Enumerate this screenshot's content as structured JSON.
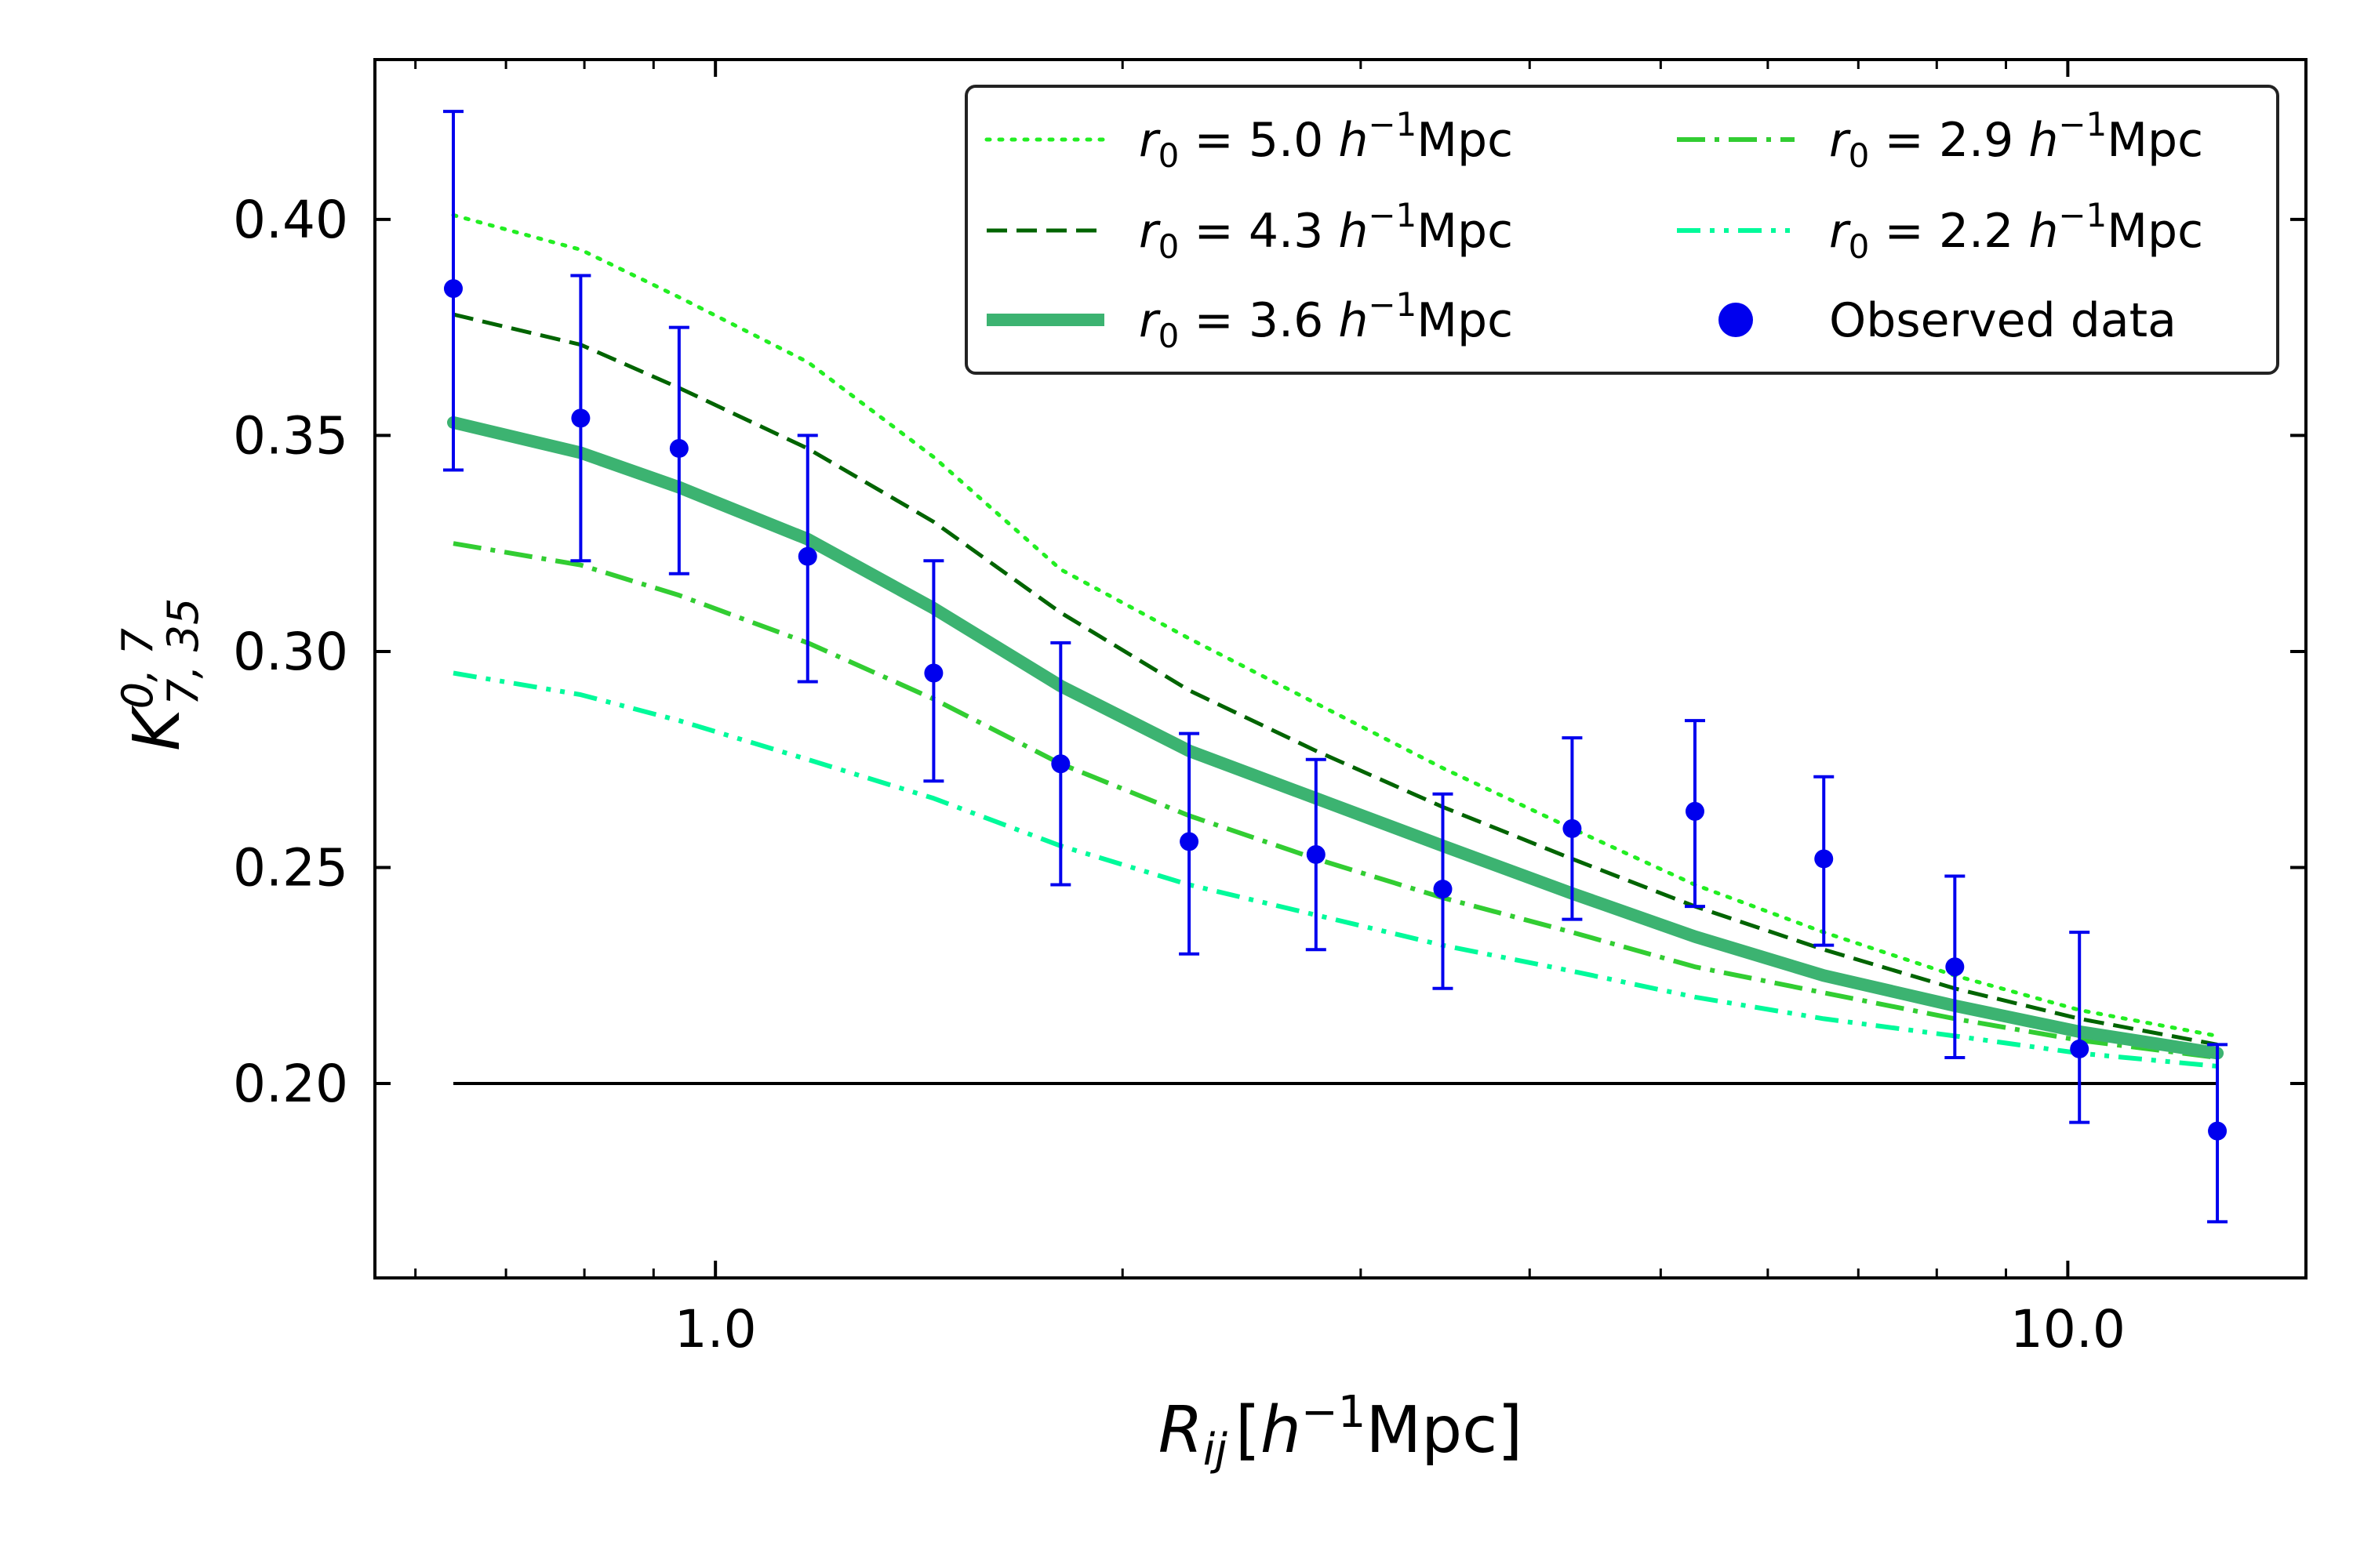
{
  "chart_data": {
    "type": "line",
    "title": "",
    "xscale": "log",
    "xlim": [
      0.56,
      15.0
    ],
    "ylim": [
      0.155,
      0.437
    ],
    "xticks": [
      1.0,
      10.0
    ],
    "xtick_labels": [
      "1.0",
      "10.0"
    ],
    "yticks": [
      0.2,
      0.25,
      0.3,
      0.35,
      0.4
    ],
    "ytick_labels": [
      "0.20",
      "0.25",
      "0.30",
      "0.35",
      "0.40"
    ],
    "xlabel": {
      "main": "R",
      "sub": "ij",
      "unit_h": "h",
      "unit_exp": "−1",
      "unit_tail": "Mpc"
    },
    "ylabel": {
      "main": "K",
      "sup": "0, 7",
      "sub": "7, 35"
    },
    "grid": false,
    "legend_position": "top-right",
    "reference_line": {
      "y": 0.2,
      "x_start": 0.64,
      "x_end": 12.9,
      "color": "#000000"
    },
    "x": [
      0.64,
      0.795,
      0.94,
      1.17,
      1.45,
      1.8,
      2.24,
      2.78,
      3.45,
      4.3,
      5.3,
      6.6,
      8.25,
      10.2,
      12.9
    ],
    "series": [
      {
        "name": "r₀ = 5.0 h⁻¹Mpc",
        "legend_main": "r",
        "legend_sub": "0",
        "legend_value": " = 5.0 ",
        "legend_unit": "Mpc",
        "style": "dotted",
        "color": "#22ee22",
        "values": [
          0.401,
          0.393,
          0.382,
          0.367,
          0.345,
          0.319,
          0.303,
          0.288,
          0.273,
          0.259,
          0.246,
          0.235,
          0.225,
          0.217,
          0.211
        ]
      },
      {
        "name": "r₀ = 4.3 h⁻¹Mpc",
        "legend_main": "r",
        "legend_sub": "0",
        "legend_value": " = 4.3 ",
        "legend_unit": "Mpc",
        "style": "dashed",
        "color": "#006400",
        "values": [
          0.378,
          0.371,
          0.361,
          0.347,
          0.33,
          0.309,
          0.291,
          0.277,
          0.264,
          0.252,
          0.241,
          0.231,
          0.222,
          0.215,
          0.209
        ]
      },
      {
        "name": "r₀ = 3.6 h⁻¹Mpc",
        "legend_main": "r",
        "legend_sub": "0",
        "legend_value": " = 3.6 ",
        "legend_unit": "Mpc",
        "style": "solid",
        "color": "#3cb371",
        "values": [
          0.353,
          0.346,
          0.338,
          0.326,
          0.31,
          0.292,
          0.277,
          0.266,
          0.255,
          0.244,
          0.234,
          0.225,
          0.218,
          0.212,
          0.207
        ]
      },
      {
        "name": "r₀ = 2.9 h⁻¹Mpc",
        "legend_main": "r",
        "legend_sub": "0",
        "legend_value": " = 2.9 ",
        "legend_unit": "Mpc",
        "style": "dashdot",
        "color": "#32cd32",
        "values": [
          0.325,
          0.32,
          0.313,
          0.302,
          0.289,
          0.274,
          0.262,
          0.252,
          0.243,
          0.235,
          0.227,
          0.221,
          0.215,
          0.21,
          0.206
        ]
      },
      {
        "name": "r₀ = 2.2 h⁻¹Mpc",
        "legend_main": "r",
        "legend_sub": "0",
        "legend_value": " = 2.2 ",
        "legend_unit": "Mpc",
        "style": "dashdotdot",
        "color": "#00fa9a",
        "values": [
          0.295,
          0.29,
          0.284,
          0.275,
          0.266,
          0.255,
          0.246,
          0.239,
          0.232,
          0.226,
          0.22,
          0.215,
          0.211,
          0.207,
          0.204
        ]
      }
    ],
    "observed": {
      "name": "Observed data",
      "color": "#0000ee",
      "values": [
        0.384,
        0.354,
        0.347,
        0.322,
        0.295,
        0.274,
        0.256,
        0.253,
        0.245,
        0.259,
        0.263,
        0.252,
        0.227,
        0.208,
        0.189
      ],
      "err_low": [
        0.342,
        0.321,
        0.318,
        0.293,
        0.27,
        0.246,
        0.23,
        0.231,
        0.222,
        0.238,
        0.241,
        0.232,
        0.206,
        0.191,
        0.168
      ],
      "err_high": [
        0.425,
        0.387,
        0.375,
        0.35,
        0.321,
        0.302,
        0.281,
        0.275,
        0.267,
        0.28,
        0.284,
        0.271,
        0.248,
        0.235,
        0.209
      ]
    }
  }
}
